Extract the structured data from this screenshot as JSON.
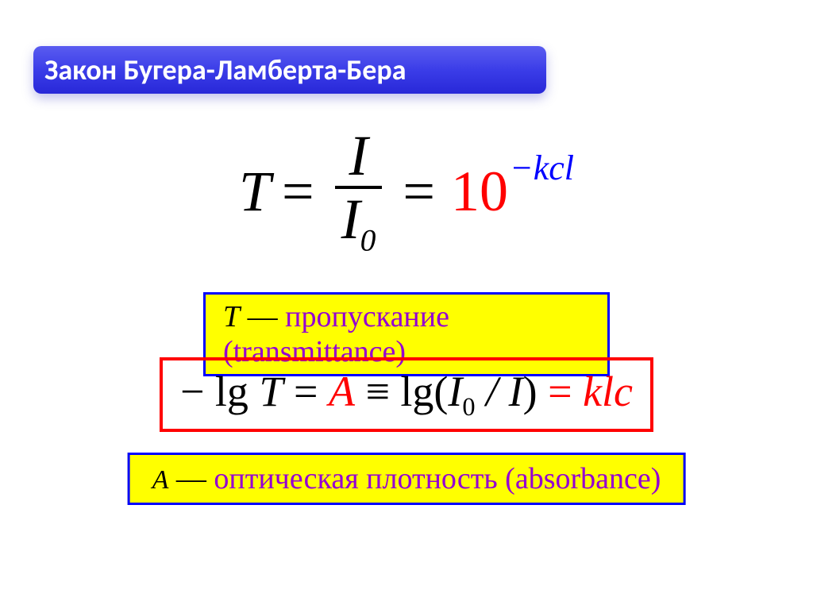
{
  "title": "Закон Бугера-Ламберта-Бера",
  "formula1": {
    "left_var": "T",
    "equals": "=",
    "numerator": "I",
    "denominator_base": "I",
    "denominator_sub": "0",
    "equals2": "=",
    "base": "10",
    "exponent": "−kcl"
  },
  "box_transmittance": {
    "variable": "T",
    "dash": " —  ",
    "description": "пропускание (transmittance)"
  },
  "formula2": {
    "neg_lg_T": "− lg",
    "T": "T",
    "eq1": " = ",
    "A": "A",
    "equiv": " ≡ ",
    "lg_open": "lg(",
    "I0_base": "I",
    "I0_sub": "0",
    "slash": " / ",
    "I": "I",
    "close": ")",
    "eq2": " = ",
    "klc": "klc"
  },
  "box_absorbance": {
    "variable": "A",
    "dash": " —  ",
    "description": "оптическая плотность (absorbance)"
  },
  "colors": {
    "title_gradient_top": "#5a5cf0",
    "title_gradient_bottom": "#2828d8",
    "title_text": "#ffffff",
    "red": "#ff0000",
    "blue": "#0000ff",
    "yellow_bg": "#ffff00",
    "purple_text": "#9400d3",
    "black": "#000000"
  }
}
